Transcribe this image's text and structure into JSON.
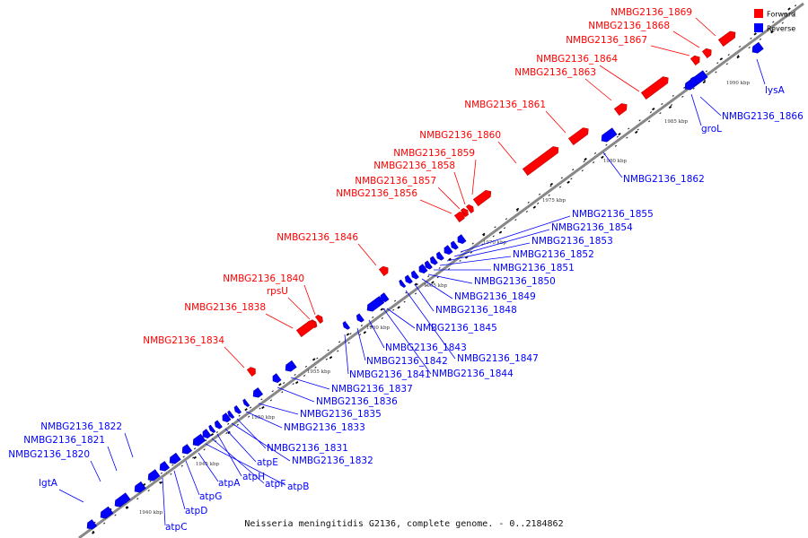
{
  "colors": {
    "forward": "#ff0000",
    "reverse": "#0000ff",
    "axis": "#888888"
  },
  "legend": {
    "forward": "Forward",
    "reverse": "Reverse"
  },
  "footer": "Neisseria meningitidis G2136, complete genome. - 0..2184862",
  "ticks": [
    "1940 kbp",
    "1945 kbp",
    "1950 kbp",
    "1955 kbp",
    "1960 kbp",
    "1965 kbp",
    "1970 kbp",
    "1975 kbp",
    "1980 kbp",
    "1985 kbp",
    "1990 kbp"
  ],
  "genes": [
    {
      "name": "NMBG2136_1869",
      "strand": "forward"
    },
    {
      "name": "NMBG2136_1868",
      "strand": "forward"
    },
    {
      "name": "NMBG2136_1867",
      "strand": "forward"
    },
    {
      "name": "NMBG2136_1864",
      "strand": "forward"
    },
    {
      "name": "NMBG2136_1863",
      "strand": "forward"
    },
    {
      "name": "NMBG2136_1861",
      "strand": "forward"
    },
    {
      "name": "NMBG2136_1860",
      "strand": "forward"
    },
    {
      "name": "NMBG2136_1859",
      "strand": "forward"
    },
    {
      "name": "NMBG2136_1858",
      "strand": "forward"
    },
    {
      "name": "NMBG2136_1857",
      "strand": "forward"
    },
    {
      "name": "NMBG2136_1856",
      "strand": "forward"
    },
    {
      "name": "NMBG2136_1846",
      "strand": "forward"
    },
    {
      "name": "NMBG2136_1840",
      "strand": "forward"
    },
    {
      "name": "rpsU",
      "strand": "forward"
    },
    {
      "name": "NMBG2136_1838",
      "strand": "forward"
    },
    {
      "name": "NMBG2136_1834",
      "strand": "forward"
    },
    {
      "name": "lysA",
      "strand": "reverse"
    },
    {
      "name": "NMBG2136_1866",
      "strand": "reverse"
    },
    {
      "name": "groL",
      "strand": "reverse"
    },
    {
      "name": "NMBG2136_1862",
      "strand": "reverse"
    },
    {
      "name": "NMBG2136_1855",
      "strand": "reverse"
    },
    {
      "name": "NMBG2136_1854",
      "strand": "reverse"
    },
    {
      "name": "NMBG2136_1853",
      "strand": "reverse"
    },
    {
      "name": "NMBG2136_1852",
      "strand": "reverse"
    },
    {
      "name": "NMBG2136_1851",
      "strand": "reverse"
    },
    {
      "name": "NMBG2136_1850",
      "strand": "reverse"
    },
    {
      "name": "NMBG2136_1849",
      "strand": "reverse"
    },
    {
      "name": "NMBG2136_1848",
      "strand": "reverse"
    },
    {
      "name": "NMBG2136_1845",
      "strand": "reverse"
    },
    {
      "name": "NMBG2136_1847",
      "strand": "reverse"
    },
    {
      "name": "NMBG2136_1843",
      "strand": "reverse"
    },
    {
      "name": "NMBG2136_1844",
      "strand": "reverse"
    },
    {
      "name": "NMBG2136_1842",
      "strand": "reverse"
    },
    {
      "name": "NMBG2136_1841",
      "strand": "reverse"
    },
    {
      "name": "NMBG2136_1837",
      "strand": "reverse"
    },
    {
      "name": "NMBG2136_1836",
      "strand": "reverse"
    },
    {
      "name": "NMBG2136_1835",
      "strand": "reverse"
    },
    {
      "name": "NMBG2136_1833",
      "strand": "reverse"
    },
    {
      "name": "NMBG2136_1831",
      "strand": "reverse"
    },
    {
      "name": "NMBG2136_1832",
      "strand": "reverse"
    },
    {
      "name": "atpE",
      "strand": "reverse"
    },
    {
      "name": "atpH",
      "strand": "reverse"
    },
    {
      "name": "atpF",
      "strand": "reverse"
    },
    {
      "name": "atpB",
      "strand": "reverse"
    },
    {
      "name": "atpA",
      "strand": "reverse"
    },
    {
      "name": "atpG",
      "strand": "reverse"
    },
    {
      "name": "atpD",
      "strand": "reverse"
    },
    {
      "name": "atpC",
      "strand": "reverse"
    },
    {
      "name": "NMBG2136_1822",
      "strand": "reverse"
    },
    {
      "name": "NMBG2136_1821",
      "strand": "reverse"
    },
    {
      "name": "NMBG2136_1820",
      "strand": "reverse"
    },
    {
      "name": "lgtA",
      "strand": "reverse"
    }
  ]
}
